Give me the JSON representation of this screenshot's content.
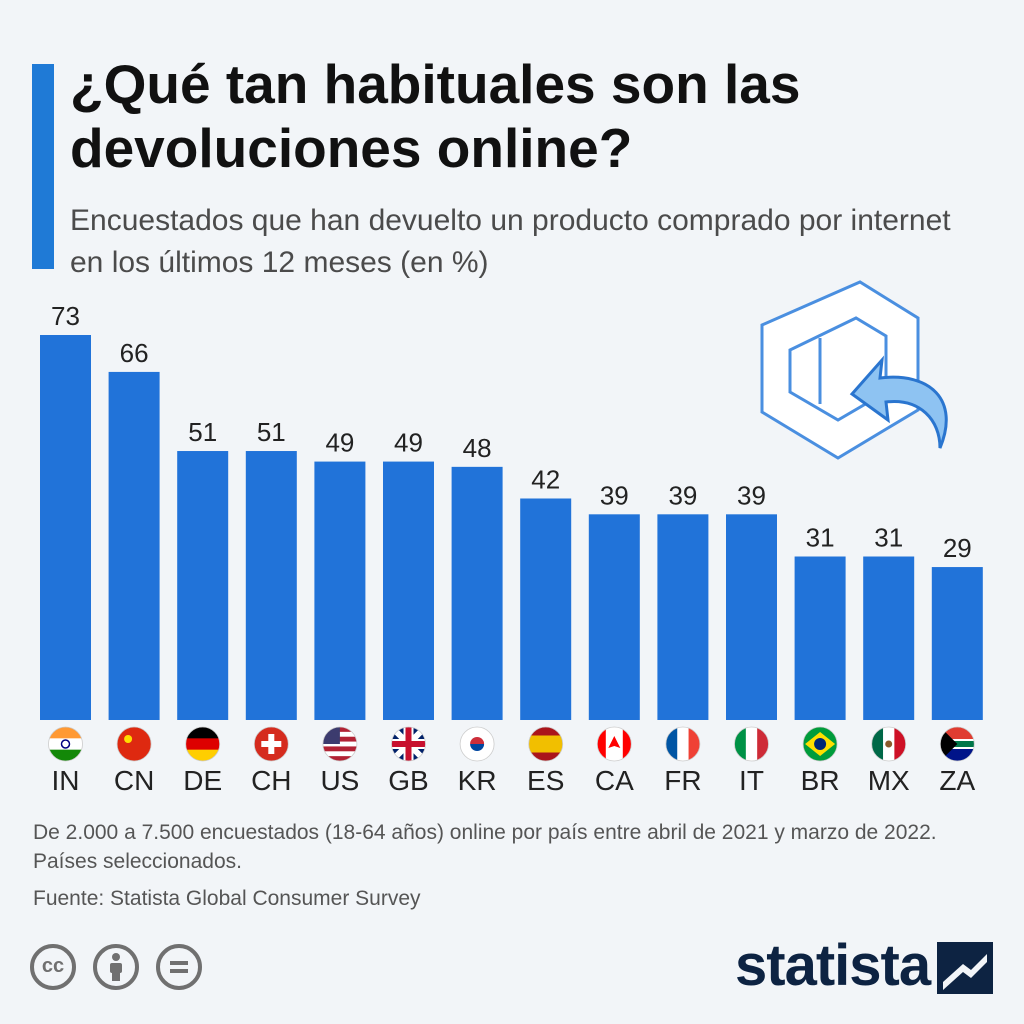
{
  "header": {
    "title": "¿Qué tan habituales son las devoluciones online?",
    "subtitle": "Encuestados que han devuelto un producto comprado por internet en los últimos 12 meses (en %)"
  },
  "colors": {
    "bar": "#2173d9",
    "accent": "#1f7ad6",
    "brand": "#0d2342"
  },
  "chart_data": {
    "type": "bar",
    "title": "¿Qué tan habituales son las devoluciones online?",
    "subtitle": "Encuestados que han devuelto un producto comprado por internet en los últimos 12 meses (en %)",
    "xlabel": "",
    "ylabel": "",
    "ylim": [
      0,
      73
    ],
    "categories": [
      "IN",
      "CN",
      "DE",
      "CH",
      "US",
      "GB",
      "KR",
      "ES",
      "CA",
      "FR",
      "IT",
      "BR",
      "MX",
      "ZA"
    ],
    "values": [
      73,
      66,
      51,
      51,
      49,
      49,
      48,
      42,
      39,
      39,
      39,
      31,
      31,
      29
    ],
    "flag_icons": [
      "india-flag-icon",
      "china-flag-icon",
      "germany-flag-icon",
      "switzerland-flag-icon",
      "usa-flag-icon",
      "uk-flag-icon",
      "south-korea-flag-icon",
      "spain-flag-icon",
      "canada-flag-icon",
      "france-flag-icon",
      "italy-flag-icon",
      "brazil-flag-icon",
      "mexico-flag-icon",
      "south-africa-flag-icon"
    ],
    "grid": false
  },
  "footer": {
    "note": "De 2.000 a 7.500 encuestados (18-64 años) online por país entre abril de 2021 y marzo de 2022. Países seleccionados.",
    "source": "Fuente: Statista Global Consumer Survey",
    "license_icons": [
      "cc-icon",
      "attribution-icon",
      "no-derivatives-icon"
    ],
    "license_cc_text": "cc",
    "brand": "statista"
  },
  "illustration": {
    "icon": "package-return-icon"
  }
}
